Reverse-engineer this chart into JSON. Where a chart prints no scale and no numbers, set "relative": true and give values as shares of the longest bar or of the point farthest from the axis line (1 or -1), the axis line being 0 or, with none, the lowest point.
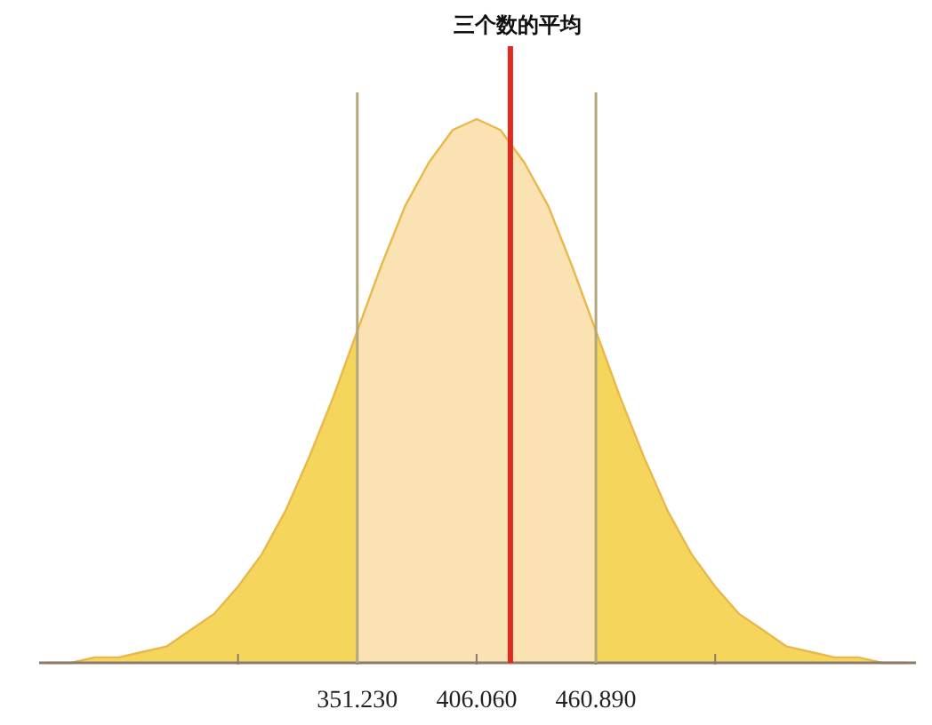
{
  "chart_data": {
    "type": "area",
    "relative": true,
    "color": "#f6d55c",
    "x": [
      208.7,
      219.6,
      230.6,
      241.6,
      252.5,
      263.5,
      274.5,
      285.4,
      296.4,
      307.4,
      318.3,
      329.3,
      340.3,
      351.2,
      362.2,
      373.2,
      384.1,
      395.1,
      406.1,
      417.0,
      428.0,
      439.0,
      449.9,
      460.9,
      471.9,
      482.8,
      493.8,
      504.8,
      515.7,
      526.7,
      537.7,
      548.6,
      559.6,
      570.6,
      581.5,
      592.5,
      603.4
    ],
    "values": [
      0,
      0,
      0.01,
      0.01,
      0.02,
      0.03,
      0.06,
      0.09,
      0.14,
      0.2,
      0.28,
      0.38,
      0.49,
      0.61,
      0.73,
      0.84,
      0.92,
      0.98,
      1,
      0.98,
      0.92,
      0.84,
      0.73,
      0.61,
      0.49,
      0.38,
      0.28,
      0.2,
      0.14,
      0.09,
      0.06,
      0.03,
      0.02,
      0.01,
      0.01,
      0,
      0
    ],
    "xlim": [
      205,
      608
    ],
    "xticks": [
      {
        "value": 296.4,
        "label": null
      },
      {
        "value": 351.23,
        "label": "351.230"
      },
      {
        "value": 406.06,
        "label": "406.060"
      },
      {
        "value": 460.89,
        "label": "460.890"
      },
      {
        "value": 515.72,
        "label": null
      }
    ],
    "bands": [
      {
        "axis": "x",
        "from": 351.23,
        "to": 460.89,
        "color": "#fae2b2"
      }
    ],
    "ref_lines": [
      {
        "axis": "x",
        "value": 351.23,
        "color": "#b0a878"
      },
      {
        "axis": "x",
        "value": 460.89,
        "color": "#b0a878"
      },
      {
        "axis": "x",
        "value": 421.6,
        "color": "#e02a1e",
        "label": "三个数的平均"
      }
    ]
  }
}
